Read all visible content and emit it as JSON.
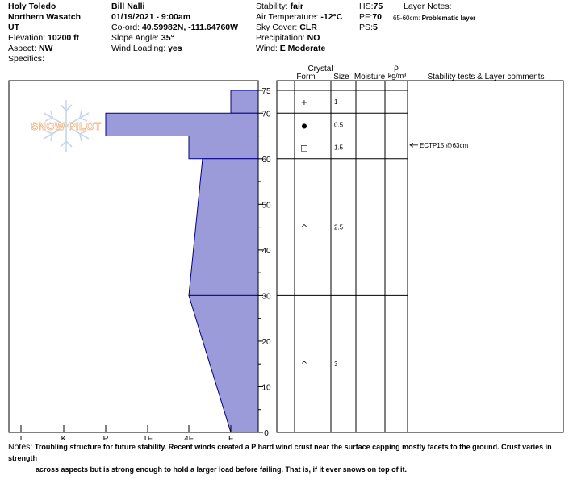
{
  "header": {
    "location": "Holy Toledo",
    "range": "Northern Wasatch",
    "state": "UT",
    "elevation_label": "Elevation:",
    "elevation": "10200 ft",
    "aspect_label": "Aspect:",
    "aspect": "NW",
    "specifics_label": "Specifics:",
    "observer": "Bill Nalli",
    "datetime": "01/19/2021 - 9:00am",
    "coord_label": "Co-ord:",
    "coord": "40.59982N, -111.64760W",
    "slope_label": "Slope Angle:",
    "slope": "35°",
    "wind_loading_label": "Wind Loading:",
    "wind_loading": "yes",
    "stability_label": "Stability:",
    "stability": "fair",
    "air_temp_label": "Air Temperature:",
    "air_temp": "-12°C",
    "sky_label": "Sky Cover:",
    "sky": "CLR",
    "precip_label": "Precipitation:",
    "precip": "NO",
    "wind_label": "Wind:",
    "wind": "E Moderate",
    "hs_label": "HS:",
    "hs": "75",
    "pf_label": "PF:",
    "pf": "70",
    "ps_label": "PS:",
    "ps": "5",
    "layer_notes_title": "Layer Notes:",
    "layer_note_range": "65-60cm:",
    "layer_note_text": "Problematic layer"
  },
  "logo_text": "SNOW PILOT",
  "columns": {
    "crystal": "Crystal",
    "form": "Form",
    "size": "Size",
    "moisture": "Moisture",
    "rho": "ρ",
    "density": "kg/m³",
    "stability": "Stability tests & Layer comments"
  },
  "chart_data": {
    "type": "snow-profile",
    "y_ticks": [
      0,
      10,
      20,
      30,
      40,
      50,
      60,
      70,
      75
    ],
    "y_range": [
      0,
      75
    ],
    "hardness_ticks": [
      "I",
      "K",
      "P",
      "1F",
      "4F",
      "F"
    ],
    "fill_color": "#9b9bd9",
    "edge_color": "#00008b",
    "hardness_profile": [
      {
        "top": 75,
        "bottom": 70,
        "hardness": "F"
      },
      {
        "top": 70,
        "bottom": 65,
        "hardness": "P"
      },
      {
        "top": 65,
        "bottom": 60,
        "hardness": "4F"
      },
      {
        "top": 60,
        "bottom": 30,
        "hardness_top": "4F",
        "hardness_bottom": "4F-"
      },
      {
        "top": 30,
        "bottom": 0,
        "hardness_top": "4F-",
        "hardness_bottom": "F"
      }
    ],
    "layer_boundaries": [
      75,
      70,
      65,
      60,
      30,
      0
    ],
    "layers": [
      {
        "top": 75,
        "bottom": 70,
        "form": "+",
        "size": "1"
      },
      {
        "top": 70,
        "bottom": 65,
        "form": "●",
        "size": "0.5"
      },
      {
        "top": 65,
        "bottom": 60,
        "form": "□",
        "size": "1.5"
      },
      {
        "top": 60,
        "bottom": 30,
        "form": "^",
        "size": "2.5"
      },
      {
        "top": 30,
        "bottom": 0,
        "form": "^",
        "size": "3"
      }
    ],
    "stability_tests": [
      {
        "depth": 63,
        "text": "ECTP15 @63cm"
      }
    ]
  },
  "notes": {
    "label": "Notes:",
    "line1": "Troubling structure for future stability. Recent winds created a P hard wind crust near the surface capping mostly facets to the ground. Crust varies in strength",
    "line2": "across aspects but is strong enough to hold a larger load before failing. That is, if it ever snows on top of it."
  }
}
